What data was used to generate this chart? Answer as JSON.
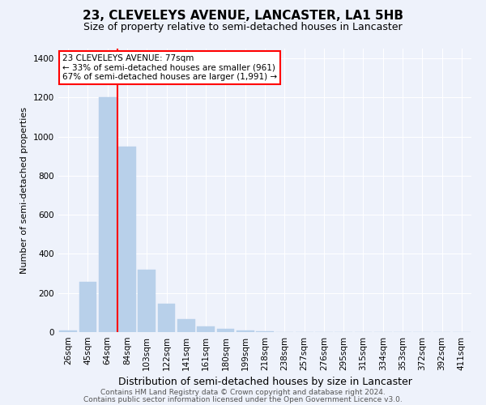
{
  "title": "23, CLEVELEYS AVENUE, LANCASTER, LA1 5HB",
  "subtitle": "Size of property relative to semi-detached houses in Lancaster",
  "xlabel": "Distribution of semi-detached houses by size in Lancaster",
  "ylabel": "Number of semi-detached properties",
  "bin_labels": [
    "26sqm",
    "45sqm",
    "64sqm",
    "84sqm",
    "103sqm",
    "122sqm",
    "141sqm",
    "161sqm",
    "180sqm",
    "199sqm",
    "218sqm",
    "238sqm",
    "257sqm",
    "276sqm",
    "295sqm",
    "315sqm",
    "334sqm",
    "353sqm",
    "372sqm",
    "392sqm",
    "411sqm"
  ],
  "bar_heights": [
    10,
    255,
    1200,
    950,
    320,
    145,
    65,
    30,
    15,
    10,
    5,
    0,
    0,
    0,
    0,
    0,
    0,
    0,
    0,
    0,
    0
  ],
  "bar_color": "#b8d0ea",
  "bar_edge_color": "#b8d0ea",
  "vline_x": 2.5,
  "vline_color": "red",
  "property_label": "23 CLEVELEYS AVENUE: 77sqm",
  "smaller_pct": 33,
  "smaller_count": 961,
  "larger_pct": 67,
  "larger_count": 1991,
  "annotation_box_color": "red",
  "ylim": [
    0,
    1450
  ],
  "yticks": [
    0,
    200,
    400,
    600,
    800,
    1000,
    1200,
    1400
  ],
  "footer_line1": "Contains HM Land Registry data © Crown copyright and database right 2024.",
  "footer_line2": "Contains public sector information licensed under the Open Government Licence v3.0.",
  "background_color": "#eef2fb",
  "grid_color": "white",
  "title_fontsize": 11,
  "subtitle_fontsize": 9,
  "ylabel_fontsize": 8,
  "xlabel_fontsize": 9,
  "tick_fontsize": 7.5,
  "annot_fontsize": 7.5,
  "footer_fontsize": 6.5
}
